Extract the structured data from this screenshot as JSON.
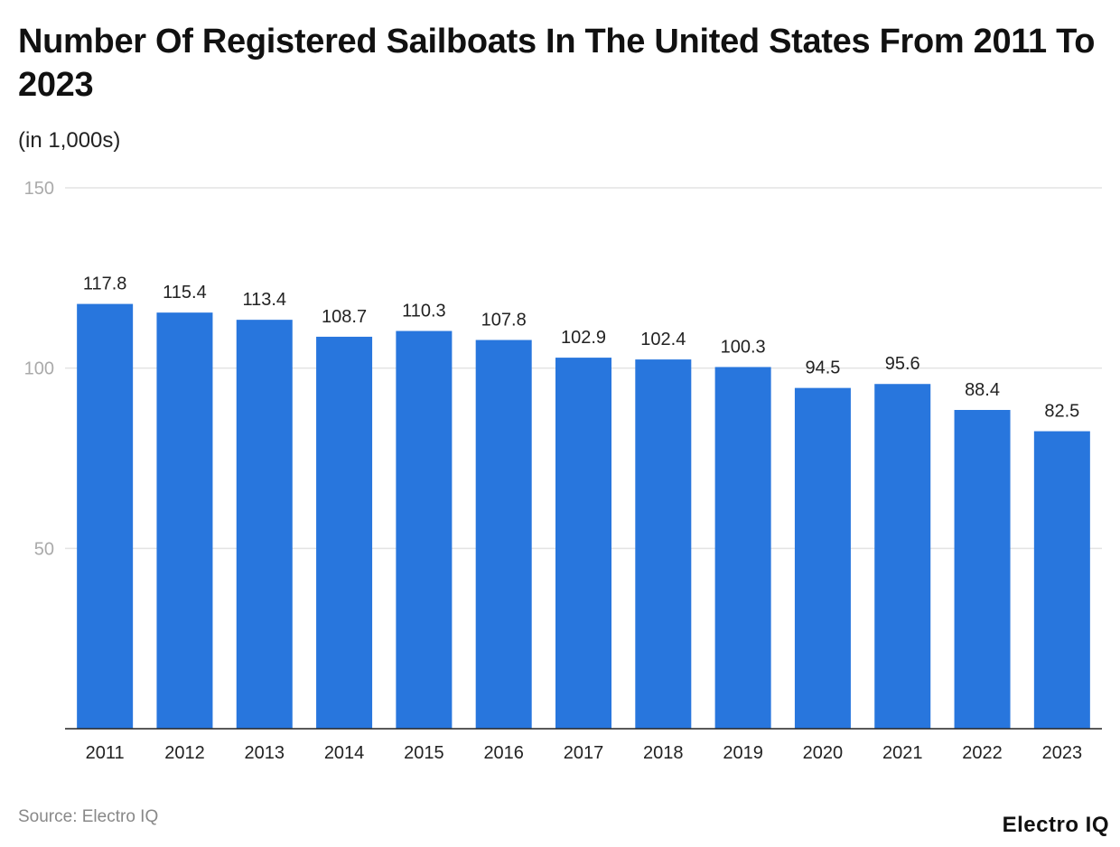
{
  "chart_data": {
    "type": "bar",
    "title": "Number Of Registered Sailboats In The United States From 2011 To 2023",
    "subtitle": "(in 1,000s)",
    "categories": [
      "2011",
      "2012",
      "2013",
      "2014",
      "2015",
      "2016",
      "2017",
      "2018",
      "2019",
      "2020",
      "2021",
      "2022",
      "2023"
    ],
    "values": [
      117.8,
      115.4,
      113.4,
      108.7,
      110.3,
      107.8,
      102.9,
      102.4,
      100.3,
      94.5,
      95.6,
      88.4,
      82.5
    ],
    "value_labels": [
      "117.8",
      "115.4",
      "113.4",
      "108.7",
      "110.3",
      "107.8",
      "102.9",
      "102.4",
      "100.3",
      "94.5",
      "95.6",
      "88.4",
      "82.5"
    ],
    "ylim": [
      0,
      150
    ],
    "yticks": [
      "50",
      "100",
      "150"
    ],
    "grid": true,
    "bar_color": "#2876dd",
    "source": "Source: Electro IQ",
    "logo": "Electro IQ"
  }
}
